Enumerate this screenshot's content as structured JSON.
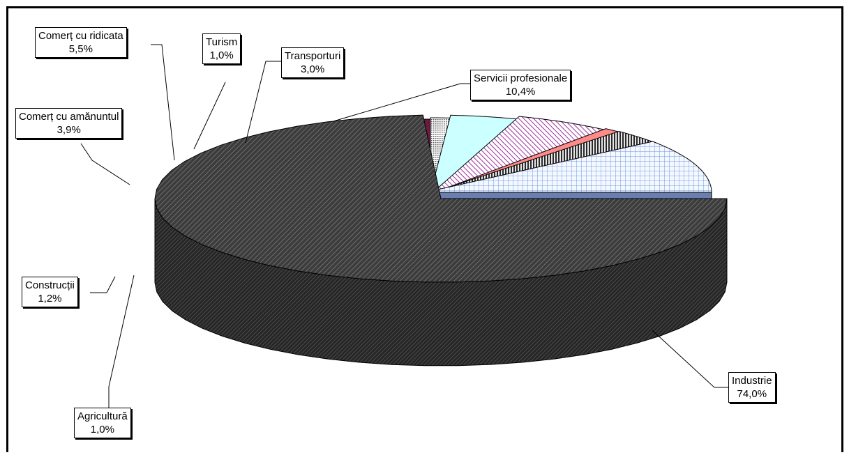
{
  "chart_data": {
    "type": "pie",
    "variant": "3d-exploded",
    "title": "",
    "slices": [
      {
        "label": "Industrie",
        "value": 74.0,
        "display": "74,0%",
        "color": "#4a4a4a",
        "pattern": "dense-diagonal-dark"
      },
      {
        "label": "Servicii profesionale",
        "value": 10.4,
        "display": "10,4%",
        "color": "#c8dcff",
        "pattern": "grid-blue"
      },
      {
        "label": "Transporturi",
        "value": 3.0,
        "display": "3,0%",
        "color": "#5a5a5a",
        "pattern": "vertical-lines-dark"
      },
      {
        "label": "Turism",
        "value": 1.0,
        "display": "1,0%",
        "color": "#ff8080",
        "pattern": "solid"
      },
      {
        "label": "Comerț cu ridicata",
        "value": 5.5,
        "display": "5,5%",
        "color": "#e8b0e8",
        "pattern": "diagonal-purple"
      },
      {
        "label": "Comerț cu amănuntul",
        "value": 3.9,
        "display": "3,9%",
        "color": "#ccffff",
        "pattern": "solid"
      },
      {
        "label": "Construcții",
        "value": 1.2,
        "display": "1,2%",
        "color": "#7a9090",
        "pattern": "dotted"
      },
      {
        "label": "Agricultură",
        "value": 1.0,
        "display": "1,0%",
        "color": "#5a1030",
        "pattern": "solid"
      }
    ],
    "legend": "none"
  }
}
